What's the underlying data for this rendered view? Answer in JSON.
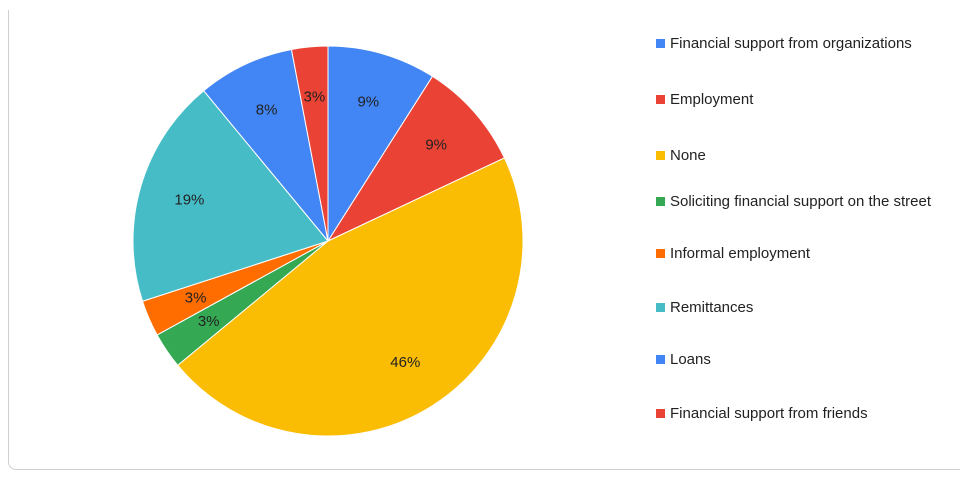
{
  "chart_data": {
    "type": "pie",
    "title": "",
    "categories": [
      "Financial support from organizations",
      "Employment",
      "None",
      "Soliciting financial support on the street",
      "Informal employment",
      "Remittances",
      "Loans",
      "Financial support from friends"
    ],
    "values": [
      9,
      9,
      46,
      3,
      3,
      19,
      8,
      3
    ],
    "labels": [
      "9%",
      "9%",
      "46%",
      "3%",
      "3%",
      "19%",
      "8%",
      "3%"
    ],
    "colors": [
      "#4285F4",
      "#EA4335",
      "#FBBC04",
      "#34A853",
      "#FF6D01",
      "#46BDC6",
      "#4285F4",
      "#EA4335"
    ],
    "legend_position": "right"
  }
}
